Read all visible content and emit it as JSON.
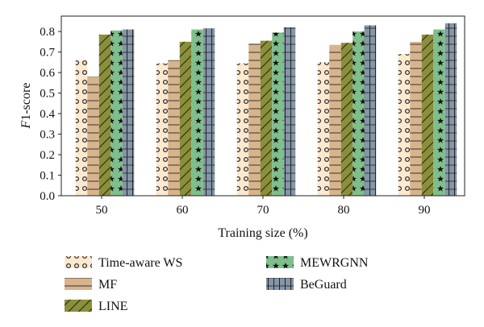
{
  "chart_data": {
    "type": "bar",
    "xlabel": "Training size (%)",
    "ylabel_italic": "F",
    "ylabel_rest": "1-score",
    "categories": [
      "50",
      "60",
      "70",
      "80",
      "90"
    ],
    "ylim": [
      0,
      0.875
    ],
    "yticks": [
      "0.0",
      "0.1",
      "0.2",
      "0.3",
      "0.4",
      "0.5",
      "0.6",
      "0.7",
      "0.8"
    ],
    "legend_position": "bottom",
    "grid": false,
    "series": [
      {
        "name": "Time-aware WS",
        "values": [
          0.66,
          0.645,
          0.645,
          0.65,
          0.69
        ],
        "color": "#fde9cf",
        "pattern": "circles"
      },
      {
        "name": "MF",
        "values": [
          0.58,
          0.66,
          0.74,
          0.735,
          0.75
        ],
        "color": "#d8b48c",
        "pattern": "hlines"
      },
      {
        "name": "LINE",
        "values": [
          0.785,
          0.75,
          0.755,
          0.745,
          0.785
        ],
        "color": "#8a8f3a",
        "pattern": "diag"
      },
      {
        "name": "MEWRGNN",
        "values": [
          0.805,
          0.81,
          0.795,
          0.8,
          0.81
        ],
        "color": "#7fbf8c",
        "pattern": "stars"
      },
      {
        "name": "BeGuard",
        "values": [
          0.81,
          0.815,
          0.82,
          0.83,
          0.84
        ],
        "color": "#8496a8",
        "pattern": "grid"
      }
    ]
  }
}
